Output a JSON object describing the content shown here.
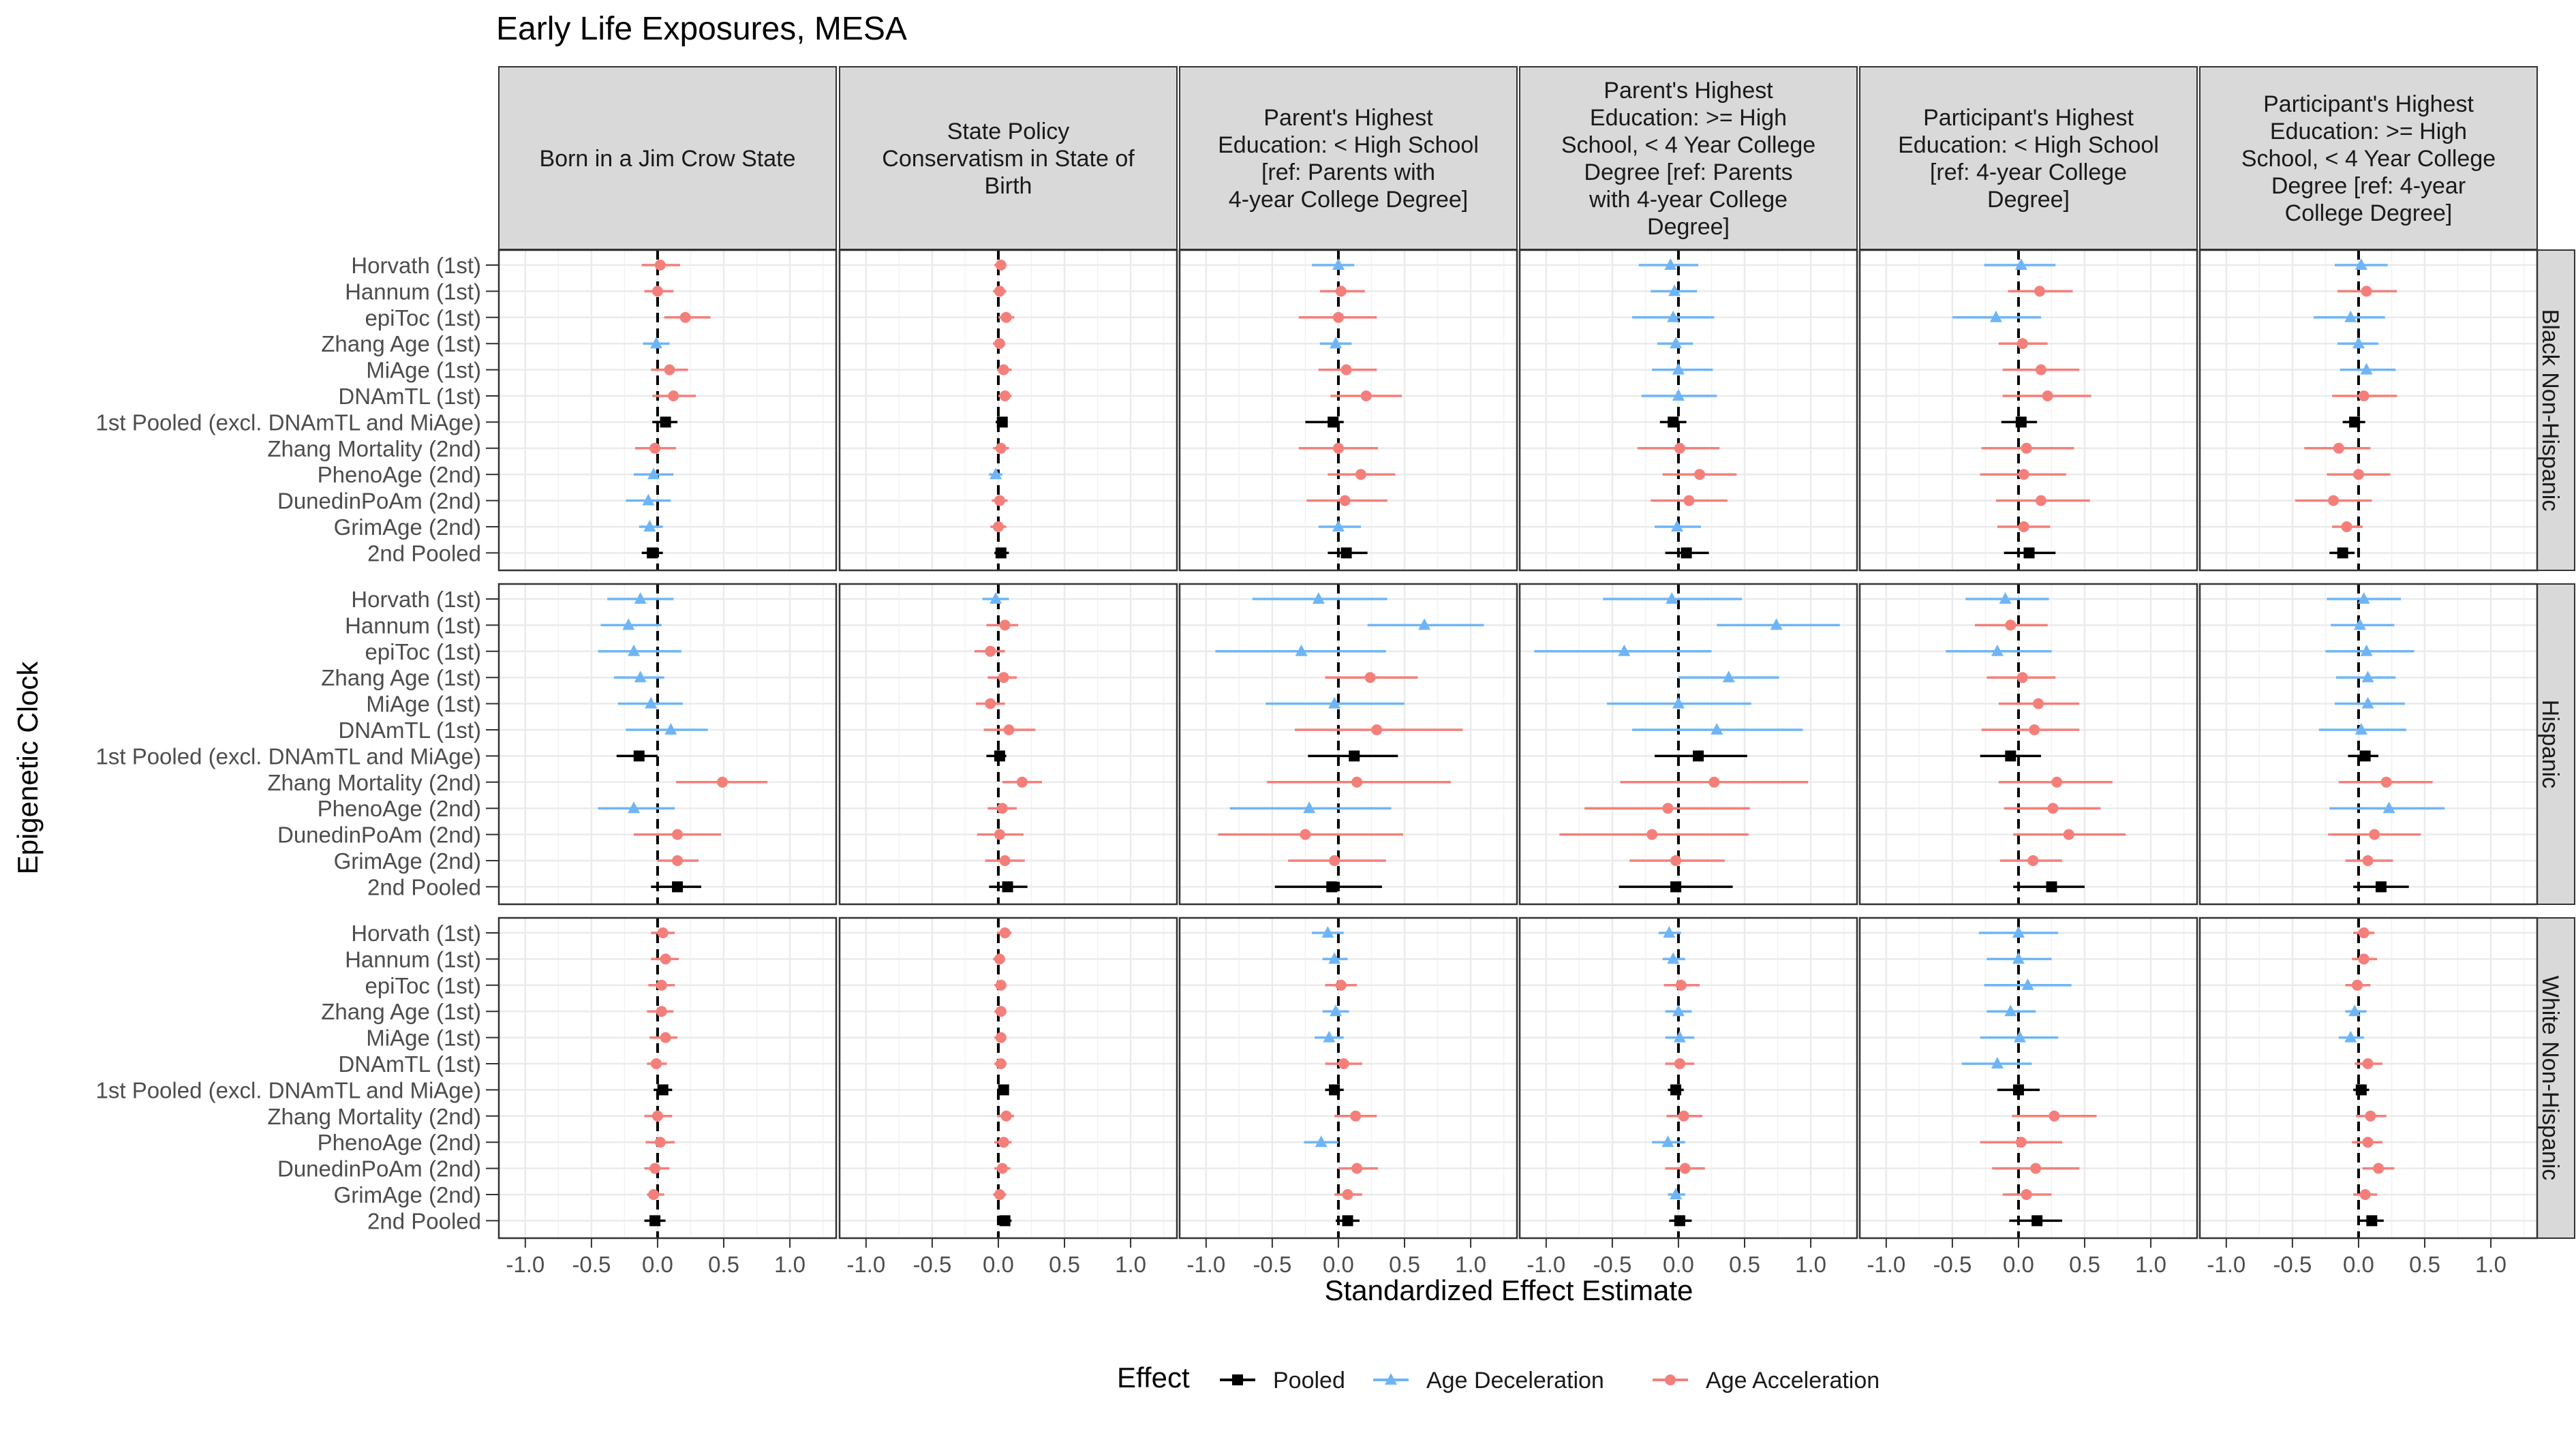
{
  "chart_data": {
    "type": "forest",
    "title": "Early Life Exposures, MESA",
    "xlabel": "Standardized Effect Estimate",
    "ylabel": "Epigenetic Clock",
    "xlim": [
      -1.2,
      1.35
    ],
    "x_ticks": [
      "-1.0",
      "-0.5",
      "0.0",
      "0.5",
      "1.0"
    ],
    "x_tick_values": [
      -1.0,
      -0.5,
      0.0,
      0.5,
      1.0
    ],
    "reference_line": 0,
    "grid": true,
    "legend": {
      "position": "bottom",
      "title": "Effect",
      "entries": [
        "Pooled",
        "Age Deceleration",
        "Age Acceleration"
      ]
    },
    "colors": {
      "Pooled": "#000000",
      "Age Deceleration": "#6fb5f6",
      "Age Acceleration": "#f47f7a"
    },
    "columns": [
      "Born in a Jim Crow State",
      "State Policy Conservatism in State of Birth",
      "Parent's Highest Education: < High School [ref: Parents with 4-year College Degree]",
      "Parent's Highest Education: >= High School, < 4 Year College Degree [ref: Parents with 4-year College Degree]",
      "Participant's Highest Education: < High School [ref: 4-year College Degree]",
      "Participant's Highest Education: >= High School, < 4 Year College Degree [ref: 4-year College Degree]"
    ],
    "column_header_lines": [
      [
        "Born in a Jim Crow State"
      ],
      [
        "State Policy",
        "Conservatism in State of",
        "Birth"
      ],
      [
        "Parent's Highest",
        "Education: < High School",
        "[ref: Parents with",
        "4-year College Degree]"
      ],
      [
        "Parent's Highest",
        "Education: >= High",
        "School, < 4 Year College",
        "Degree [ref: Parents",
        "with 4-year College",
        "Degree]"
      ],
      [
        "Participant's Highest",
        "Education: < High School",
        "[ref: 4-year College",
        "Degree]"
      ],
      [
        "Participant's Highest",
        "Education: >= High",
        "School, < 4 Year College",
        "Degree [ref: 4-year",
        "College Degree]"
      ]
    ],
    "rows": [
      "Black Non-Hispanic",
      "Hispanic",
      "White Non-Hispanic"
    ],
    "clocks": [
      "Horvath (1st)",
      "Hannum (1st)",
      "epiToc (1st)",
      "Zhang Age (1st)",
      "MiAge (1st)",
      "DNAmTL (1st)",
      "1st Pooled (excl. DNAmTL and MiAge)",
      "Zhang Mortality (2nd)",
      "PhenoAge (2nd)",
      "DunedinPoAm (2nd)",
      "GrimAge (2nd)",
      "2nd Pooled"
    ],
    "effects": [
      "A",
      "A",
      "A",
      "D",
      "A",
      "A",
      "P",
      "A",
      "D",
      "D",
      "D",
      "P",
      "A",
      "A",
      "A",
      "A",
      "A",
      "A",
      "P",
      "A",
      "D",
      "A",
      "A",
      "P",
      "D",
      "A",
      "A",
      "D",
      "A",
      "A",
      "P",
      "A",
      "A",
      "A",
      "D",
      "P",
      "D",
      "D",
      "D",
      "D",
      "D",
      "D",
      "P",
      "A",
      "A",
      "A",
      "D",
      "P",
      "D",
      "A",
      "D",
      "A",
      "A",
      "A",
      "P",
      "A",
      "A",
      "A",
      "A",
      "P",
      "D",
      "A",
      "D",
      "D",
      "D",
      "A",
      "P",
      "A",
      "A",
      "A",
      "A",
      "P",
      "D",
      "D",
      "D",
      "D",
      "D",
      "D",
      "P",
      "A",
      "D",
      "A",
      "A",
      "P",
      "D",
      "A",
      "A",
      "A",
      "A",
      "A",
      "P",
      "A",
      "A",
      "A",
      "A",
      "P",
      "D",
      "D",
      "D",
      "A",
      "D",
      "A",
      "P",
      "A",
      "D",
      "A",
      "A",
      "P",
      "D",
      "D",
      "D",
      "D",
      "D",
      "D",
      "P",
      "A",
      "A",
      "A",
      "A",
      "P",
      "D",
      "A",
      "D",
      "A",
      "A",
      "A",
      "P",
      "A",
      "A",
      "A",
      "A",
      "P",
      "D",
      "D",
      "D",
      "D",
      "D",
      "D",
      "P",
      "A",
      "D",
      "A",
      "A",
      "P",
      "A",
      "A",
      "A",
      "A",
      "A",
      "A",
      "P",
      "A",
      "A",
      "A",
      "A",
      "P",
      "A",
      "A",
      "A",
      "A",
      "A",
      "A",
      "P",
      "A",
      "A",
      "A",
      "A",
      "P",
      "D",
      "D",
      "A",
      "D",
      "D",
      "A",
      "P",
      "A",
      "D",
      "A",
      "A",
      "P",
      "D",
      "D",
      "A",
      "D",
      "D",
      "A",
      "P",
      "A",
      "D",
      "A",
      "D",
      "P",
      "D",
      "D",
      "D",
      "D",
      "D",
      "D",
      "P",
      "A",
      "A",
      "A",
      "A",
      "P",
      "A",
      "A",
      "A",
      "D",
      "D",
      "A",
      "P",
      "A",
      "A",
      "A",
      "A",
      "P"
    ],
    "estimates": [
      0.02,
      0.0,
      0.21,
      -0.01,
      0.09,
      0.12,
      0.06,
      -0.02,
      -0.03,
      -0.07,
      -0.06,
      -0.04,
      0.02,
      0.01,
      0.06,
      0.01,
      0.04,
      0.05,
      0.03,
      0.02,
      -0.02,
      0.01,
      0.0,
      0.02,
      0.0,
      0.02,
      0.0,
      -0.02,
      0.06,
      0.21,
      -0.04,
      0.0,
      0.17,
      0.05,
      0.0,
      0.06,
      -0.06,
      -0.03,
      -0.04,
      -0.02,
      0.0,
      0.0,
      -0.04,
      0.01,
      0.16,
      0.08,
      -0.01,
      0.06,
      0.02,
      0.16,
      -0.17,
      0.03,
      0.17,
      0.22,
      0.02,
      0.06,
      0.04,
      0.17,
      0.04,
      0.08,
      0.02,
      0.06,
      -0.06,
      0.0,
      0.06,
      0.04,
      -0.03,
      -0.15,
      0.0,
      -0.19,
      -0.09,
      -0.12,
      -0.13,
      -0.22,
      -0.18,
      -0.13,
      -0.05,
      0.1,
      -0.14,
      0.49,
      -0.18,
      0.15,
      0.15,
      0.15,
      -0.02,
      0.05,
      -0.06,
      0.04,
      -0.06,
      0.08,
      0.01,
      0.18,
      0.03,
      0.01,
      0.05,
      0.07,
      -0.15,
      0.65,
      -0.28,
      0.24,
      -0.03,
      0.29,
      0.12,
      0.14,
      -0.22,
      -0.25,
      -0.03,
      -0.05,
      -0.05,
      0.74,
      -0.41,
      0.38,
      0.0,
      0.29,
      0.15,
      0.27,
      -0.08,
      -0.2,
      -0.02,
      -0.02,
      -0.1,
      -0.06,
      -0.16,
      0.03,
      0.15,
      0.12,
      -0.06,
      0.29,
      0.26,
      0.38,
      0.11,
      0.25,
      0.04,
      0.01,
      0.06,
      0.07,
      0.07,
      0.02,
      0.05,
      0.21,
      0.23,
      0.12,
      0.07,
      0.17,
      0.04,
      0.06,
      0.03,
      0.03,
      0.06,
      -0.01,
      0.04,
      0.0,
      0.02,
      -0.02,
      -0.03,
      -0.02,
      0.05,
      0.01,
      0.02,
      0.02,
      0.02,
      0.02,
      0.04,
      0.06,
      0.04,
      0.03,
      0.01,
      0.05,
      -0.08,
      -0.03,
      0.02,
      -0.02,
      -0.07,
      0.04,
      -0.03,
      0.13,
      -0.13,
      0.14,
      0.07,
      0.07,
      -0.07,
      -0.04,
      0.02,
      0.0,
      0.01,
      0.01,
      -0.02,
      0.04,
      -0.08,
      0.05,
      -0.02,
      0.01,
      0.0,
      0.0,
      0.07,
      -0.06,
      0.01,
      -0.16,
      0.0,
      0.27,
      0.02,
      0.13,
      0.06,
      0.14,
      0.04,
      0.04,
      -0.01,
      -0.03,
      -0.06,
      0.07,
      0.02,
      0.09,
      0.07,
      0.15,
      0.05,
      0.1
    ],
    "lower": [
      -0.12,
      -0.1,
      0.05,
      -0.11,
      -0.05,
      -0.04,
      -0.04,
      -0.17,
      -0.18,
      -0.24,
      -0.14,
      -0.12,
      -0.03,
      -0.04,
      0.0,
      -0.04,
      -0.01,
      0.0,
      -0.02,
      -0.04,
      -0.07,
      -0.05,
      -0.06,
      -0.03,
      -0.2,
      -0.14,
      -0.3,
      -0.14,
      -0.15,
      -0.06,
      -0.25,
      -0.3,
      -0.08,
      -0.24,
      -0.15,
      -0.08,
      -0.3,
      -0.21,
      -0.35,
      -0.16,
      -0.2,
      -0.28,
      -0.14,
      -0.31,
      -0.12,
      -0.21,
      -0.18,
      -0.1,
      -0.26,
      -0.08,
      -0.5,
      -0.15,
      -0.12,
      -0.12,
      -0.13,
      -0.28,
      -0.29,
      -0.17,
      -0.16,
      -0.11,
      -0.18,
      -0.16,
      -0.34,
      -0.16,
      -0.14,
      -0.2,
      -0.12,
      -0.41,
      -0.24,
      -0.48,
      -0.2,
      -0.22,
      -0.38,
      -0.43,
      -0.45,
      -0.33,
      -0.3,
      -0.24,
      -0.31,
      0.14,
      -0.45,
      -0.18,
      0.0,
      -0.05,
      -0.12,
      -0.09,
      -0.18,
      -0.08,
      -0.17,
      -0.11,
      -0.09,
      0.03,
      -0.08,
      -0.16,
      -0.1,
      -0.07,
      -0.65,
      0.22,
      -0.93,
      -0.1,
      -0.55,
      -0.33,
      -0.23,
      -0.54,
      -0.82,
      -0.91,
      -0.38,
      -0.48,
      -0.57,
      0.29,
      -1.09,
      0.0,
      -0.54,
      -0.35,
      -0.18,
      -0.44,
      -0.71,
      -0.9,
      -0.37,
      -0.45,
      -0.4,
      -0.33,
      -0.55,
      -0.24,
      -0.15,
      -0.28,
      -0.29,
      -0.15,
      -0.11,
      -0.04,
      -0.14,
      -0.04,
      -0.24,
      -0.21,
      -0.25,
      -0.17,
      -0.18,
      -0.3,
      -0.08,
      -0.15,
      -0.22,
      -0.23,
      -0.1,
      -0.04,
      -0.05,
      -0.05,
      -0.07,
      -0.08,
      -0.06,
      -0.08,
      -0.03,
      -0.1,
      -0.09,
      -0.1,
      -0.08,
      -0.1,
      -0.01,
      -0.04,
      -0.03,
      -0.03,
      -0.03,
      -0.03,
      -0.01,
      -0.01,
      -0.03,
      -0.03,
      -0.04,
      -0.01,
      -0.2,
      -0.12,
      -0.1,
      -0.12,
      -0.18,
      -0.1,
      -0.1,
      -0.03,
      -0.26,
      0.0,
      -0.03,
      -0.02,
      -0.15,
      -0.12,
      -0.11,
      -0.1,
      -0.1,
      -0.1,
      -0.08,
      -0.09,
      -0.2,
      -0.1,
      -0.08,
      -0.07,
      -0.3,
      -0.24,
      -0.26,
      -0.24,
      -0.29,
      -0.43,
      -0.16,
      -0.05,
      -0.29,
      -0.2,
      -0.12,
      -0.07,
      -0.04,
      -0.05,
      -0.1,
      -0.1,
      -0.15,
      -0.03,
      -0.04,
      -0.02,
      -0.05,
      0.03,
      -0.04,
      0.0
    ],
    "upper": [
      0.17,
      0.12,
      0.4,
      0.09,
      0.23,
      0.29,
      0.15,
      0.14,
      0.12,
      0.1,
      0.04,
      0.04,
      0.06,
      0.06,
      0.12,
      0.05,
      0.1,
      0.1,
      0.07,
      0.08,
      0.03,
      0.07,
      0.06,
      0.08,
      0.12,
      0.2,
      0.29,
      0.1,
      0.29,
      0.48,
      0.04,
      0.3,
      0.43,
      0.37,
      0.17,
      0.22,
      0.15,
      0.14,
      0.27,
      0.11,
      0.26,
      0.29,
      0.06,
      0.31,
      0.44,
      0.37,
      0.17,
      0.23,
      0.28,
      0.41,
      0.17,
      0.22,
      0.46,
      0.55,
      0.14,
      0.42,
      0.36,
      0.54,
      0.24,
      0.28,
      0.22,
      0.29,
      0.2,
      0.15,
      0.28,
      0.29,
      0.05,
      0.09,
      0.24,
      0.1,
      0.03,
      -0.03,
      0.12,
      0.03,
      0.18,
      0.05,
      0.19,
      0.38,
      0.0,
      0.83,
      0.13,
      0.48,
      0.31,
      0.33,
      0.08,
      0.15,
      0.05,
      0.14,
      0.05,
      0.28,
      0.06,
      0.33,
      0.14,
      0.19,
      0.2,
      0.22,
      0.37,
      1.1,
      0.36,
      0.6,
      0.5,
      0.94,
      0.45,
      0.85,
      0.4,
      0.49,
      0.36,
      0.33,
      0.48,
      1.22,
      0.25,
      0.76,
      0.55,
      0.94,
      0.52,
      0.98,
      0.54,
      0.53,
      0.35,
      0.41,
      0.23,
      0.22,
      0.25,
      0.28,
      0.46,
      0.46,
      0.17,
      0.71,
      0.62,
      0.81,
      0.33,
      0.5,
      0.32,
      0.27,
      0.42,
      0.28,
      0.35,
      0.36,
      0.15,
      0.56,
      0.65,
      0.47,
      0.26,
      0.38,
      0.13,
      0.16,
      0.13,
      0.12,
      0.15,
      0.07,
      0.11,
      0.11,
      0.13,
      0.09,
      0.05,
      0.06,
      0.1,
      0.05,
      0.06,
      0.06,
      0.06,
      0.06,
      0.07,
      0.12,
      0.1,
      0.09,
      0.06,
      0.1,
      0.04,
      0.07,
      0.14,
      0.08,
      0.04,
      0.18,
      0.04,
      0.29,
      0.0,
      0.3,
      0.18,
      0.16,
      0.02,
      0.05,
      0.16,
      0.1,
      0.12,
      0.12,
      0.04,
      0.18,
      0.05,
      0.2,
      0.05,
      0.1,
      0.3,
      0.25,
      0.4,
      0.13,
      0.3,
      0.1,
      0.16,
      0.59,
      0.33,
      0.46,
      0.25,
      0.33,
      0.12,
      0.14,
      0.09,
      0.06,
      0.04,
      0.18,
      0.08,
      0.21,
      0.18,
      0.27,
      0.14,
      0.19
    ]
  }
}
